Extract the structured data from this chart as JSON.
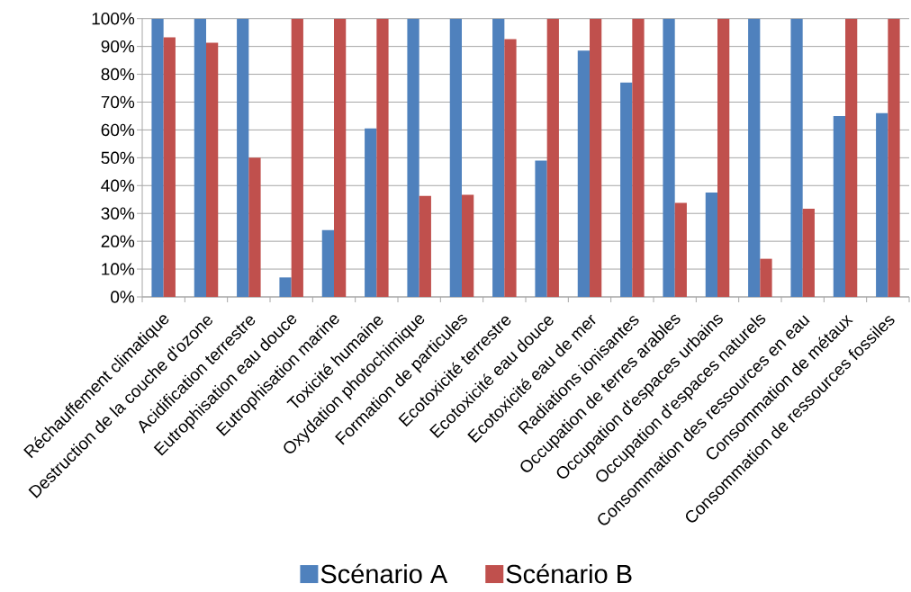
{
  "chart_data": {
    "type": "bar",
    "categories": [
      "Réchauffement climatique",
      "Destruction de la couche d'ozone",
      "Acidification terrestre",
      "Eutrophisation eau douce",
      "Eutrophisation marine",
      "Toxicité humaine",
      "Oxydation photochimique",
      "Formation de particules",
      "Ecotoxicité terrestre",
      "Ecotoxicité eau douce",
      "Ecotoxicité eau de mer",
      "Radiations ionisantes",
      "Occupation de terres arables",
      "Occupation d'espaces urbains",
      "Occupation d'espaces naturels",
      "Consommation des ressources en eau",
      "Consommation de métaux",
      "Consommation de ressources fossiles"
    ],
    "series": [
      {
        "name": "Scénario A",
        "color": "#4f81bd",
        "values": [
          100,
          100,
          100,
          7,
          24,
          60.5,
          100,
          100,
          100,
          49,
          88.5,
          77,
          100,
          37.5,
          100,
          100,
          65,
          66
        ]
      },
      {
        "name": "Scénario B",
        "color": "#c0504d",
        "values": [
          93.3,
          91.3,
          50,
          100,
          100,
          100,
          36.3,
          36.7,
          92.6,
          100,
          100,
          100,
          33.8,
          100,
          13.7,
          31.7,
          100,
          100
        ]
      }
    ],
    "ylim": [
      0,
      100
    ],
    "yticks": [
      {
        "value": 0,
        "label": "0%"
      },
      {
        "value": 10,
        "label": "10%"
      },
      {
        "value": 20,
        "label": "20%"
      },
      {
        "value": 30,
        "label": "30%"
      },
      {
        "value": 40,
        "label": "40%"
      },
      {
        "value": 50,
        "label": "50%"
      },
      {
        "value": 60,
        "label": "60%"
      },
      {
        "value": 70,
        "label": "70%"
      },
      {
        "value": 80,
        "label": "80%"
      },
      {
        "value": 90,
        "label": "90%"
      },
      {
        "value": 100,
        "label": "100%"
      }
    ],
    "grid": "y",
    "legend": "bottom"
  }
}
